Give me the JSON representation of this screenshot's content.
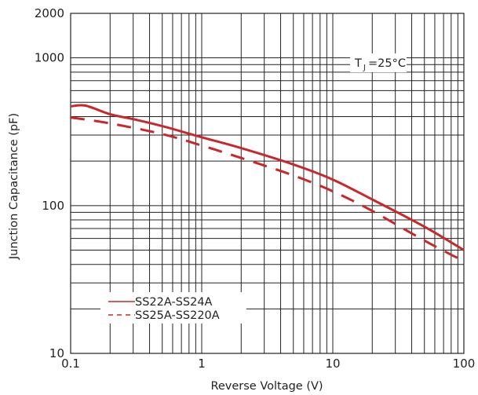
{
  "chart_data": {
    "type": "line",
    "title": "",
    "xlabel": "Reverse Voltage (V)",
    "ylabel": "Junction Capacitance (pF)",
    "x_scale": "log",
    "y_scale": "log",
    "xlim": [
      0.1,
      100
    ],
    "ylim": [
      10,
      2000
    ],
    "x_tick_labels": [
      "0.1",
      "1",
      "10",
      "100"
    ],
    "y_tick_labels": [
      "2000",
      "1000",
      "100",
      "10"
    ],
    "grid": true,
    "legend_position": "bottom-left",
    "annotation": {
      "main": "T",
      "sub": "J",
      "rest": "=25°C"
    },
    "series": [
      {
        "name": "SS22A-SS24A",
        "style": "solid",
        "color": "#c8282c",
        "x": [
          0.1,
          0.13,
          0.2,
          0.3,
          0.5,
          1,
          2,
          5,
          10,
          20,
          50,
          100
        ],
        "y": [
          470,
          475,
          415,
          385,
          345,
          290,
          245,
          190,
          150,
          110,
          72,
          50
        ]
      },
      {
        "name": "SS25A-SS220A",
        "style": "dashed",
        "color": "#c8282c",
        "x": [
          0.1,
          0.2,
          0.5,
          1,
          2,
          5,
          10,
          20,
          50,
          100
        ],
        "y": [
          395,
          360,
          305,
          255,
          210,
          160,
          125,
          92,
          58,
          42
        ]
      }
    ]
  }
}
